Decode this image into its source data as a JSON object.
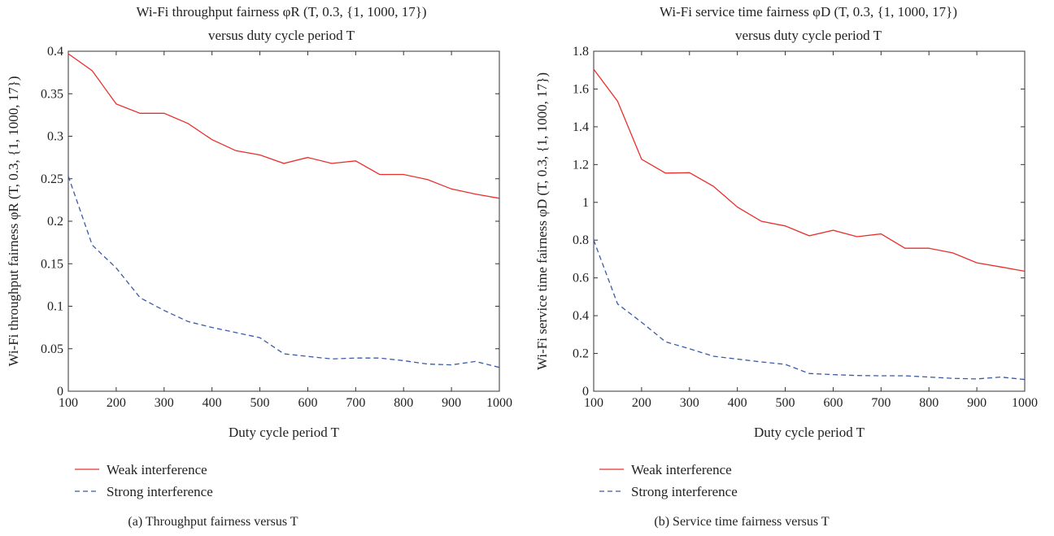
{
  "chart_data": [
    {
      "type": "line",
      "title_line1": "Wi-Fi throughput fairness φR (T, 0.3, {1, 1000, 17})",
      "title_line2": "versus duty cycle period T",
      "xlabel": "Duty cycle period T",
      "ylabel": "Wi-Fi throughput fairness φR (T, 0.3, {1, 1000, 17})",
      "caption": "(a)  Throughput fairness versus T",
      "xlim": [
        100,
        1000
      ],
      "ylim": [
        0,
        0.4
      ],
      "x_ticks": [
        100,
        200,
        300,
        400,
        500,
        600,
        700,
        800,
        900,
        1000
      ],
      "x_tick_labels": [
        "100",
        "200",
        "300",
        "400",
        "500",
        "600",
        "700",
        "800",
        "900",
        "1000"
      ],
      "y_ticks": [
        0,
        0.05,
        0.1,
        0.15,
        0.2,
        0.25,
        0.3,
        0.35,
        0.4
      ],
      "y_tick_labels": [
        "0",
        "0.05",
        "0.1",
        "0.15",
        "0.2",
        "0.25",
        "0.3",
        "0.35",
        "0.4"
      ],
      "x": [
        100,
        150,
        200,
        250,
        300,
        350,
        400,
        450,
        500,
        550,
        600,
        650,
        700,
        750,
        800,
        850,
        900,
        950,
        1000
      ],
      "series": [
        {
          "name": "Weak interference",
          "color": "#e8302d",
          "style": "solid",
          "values": [
            0.397,
            0.377,
            0.338,
            0.327,
            0.327,
            0.315,
            0.296,
            0.283,
            0.278,
            0.268,
            0.275,
            0.268,
            0.271,
            0.255,
            0.255,
            0.249,
            0.238,
            0.232,
            0.227
          ]
        },
        {
          "name": "Strong interference",
          "color": "#3b5ba5",
          "style": "dashed",
          "values": [
            0.253,
            0.172,
            0.145,
            0.11,
            0.095,
            0.082,
            0.075,
            0.069,
            0.063,
            0.044,
            0.041,
            0.038,
            0.039,
            0.039,
            0.036,
            0.032,
            0.031,
            0.035,
            0.028
          ]
        }
      ],
      "legend": "below"
    },
    {
      "type": "line",
      "title_line1": "Wi-Fi service time fairness φD (T, 0.3, {1, 1000, 17})",
      "title_line2": "versus duty cycle period T",
      "xlabel": "Duty cycle period T",
      "ylabel": "Wi-Fi service time fairness φD (T, 0.3, {1, 1000, 17})",
      "caption": "(b)  Service time fairness versus T",
      "xlim": [
        100,
        1000
      ],
      "ylim": [
        0,
        1.8
      ],
      "x_ticks": [
        100,
        200,
        300,
        400,
        500,
        600,
        700,
        800,
        900,
        1000
      ],
      "x_tick_labels": [
        "100",
        "200",
        "300",
        "400",
        "500",
        "600",
        "700",
        "800",
        "900",
        "1000"
      ],
      "y_ticks": [
        0,
        0.2,
        0.4,
        0.6,
        0.8,
        1,
        1.2,
        1.4,
        1.6,
        1.8
      ],
      "y_tick_labels": [
        "0",
        "0.2",
        "0.4",
        "0.6",
        "0.8",
        "1",
        "1.2",
        "1.4",
        "1.6",
        "1.8"
      ],
      "x": [
        100,
        150,
        200,
        250,
        300,
        350,
        400,
        450,
        500,
        550,
        600,
        650,
        700,
        750,
        800,
        850,
        900,
        950,
        1000
      ],
      "series": [
        {
          "name": "Weak interference",
          "color": "#e8302d",
          "style": "solid",
          "values": [
            1.705,
            1.535,
            1.228,
            1.155,
            1.157,
            1.085,
            0.975,
            0.9,
            0.875,
            0.823,
            0.852,
            0.818,
            0.833,
            0.757,
            0.757,
            0.732,
            0.68,
            0.658,
            0.635
          ]
        },
        {
          "name": "Strong interference",
          "color": "#3b5ba5",
          "style": "dashed",
          "values": [
            0.8,
            0.462,
            0.365,
            0.262,
            0.225,
            0.185,
            0.17,
            0.155,
            0.142,
            0.094,
            0.088,
            0.083,
            0.082,
            0.082,
            0.075,
            0.068,
            0.065,
            0.075,
            0.062
          ]
        }
      ],
      "legend": "below"
    }
  ]
}
